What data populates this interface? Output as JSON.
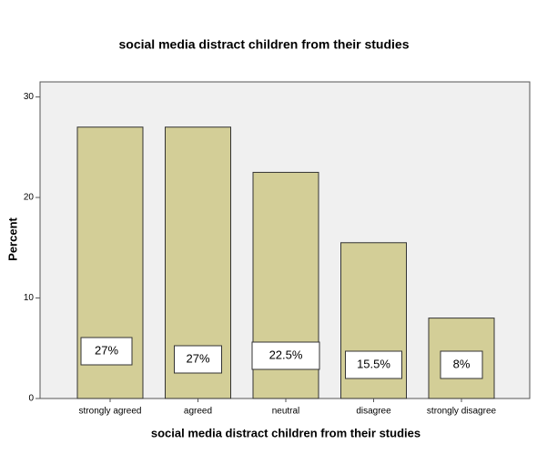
{
  "chart_data": {
    "type": "bar",
    "title": "social media distract children from their studies",
    "x_label": "social media distract children from their studies",
    "y_label": "Percent",
    "categories": [
      "strongly agreed",
      "agreed",
      "neutral",
      "disagree",
      "strongly disagree"
    ],
    "values": [
      27,
      27,
      22.5,
      15.5,
      8
    ],
    "value_labels": [
      "27%",
      "27%",
      "22.5%",
      "15.5%",
      "8%"
    ],
    "color": "#d3ce97",
    "ylim": [
      0,
      31.5
    ],
    "yticks": [
      0,
      10,
      20,
      30
    ]
  }
}
